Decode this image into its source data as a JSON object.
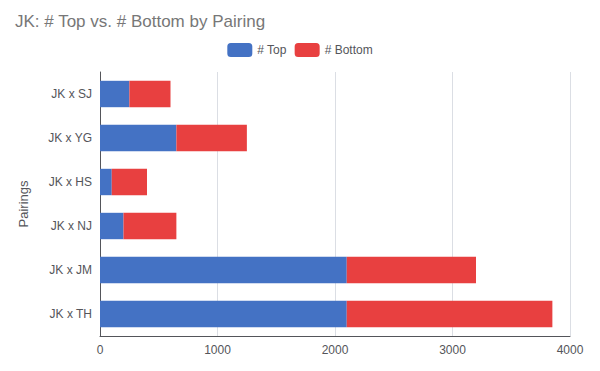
{
  "chart_data": {
    "type": "bar",
    "orientation": "horizontal",
    "stacked": true,
    "title": "JK: # Top vs. # Bottom by Pairing",
    "ylabel": "Pairings",
    "categories": [
      "JK x TH",
      "JK x JM",
      "JK x NJ",
      "JK x HS",
      "JK x YG",
      "JK x SJ"
    ],
    "series": [
      {
        "name": "# Top",
        "color": "#4472C4",
        "values": [
          2100,
          2100,
          200,
          100,
          650,
          250
        ]
      },
      {
        "name": "# Bottom",
        "color": "#E84040",
        "values": [
          1750,
          1100,
          450,
          300,
          600,
          350
        ]
      }
    ],
    "xlim": [
      0,
      4000
    ],
    "xticks": [
      0,
      1000,
      2000,
      3000,
      4000
    ],
    "grid": true,
    "legend": "top"
  }
}
